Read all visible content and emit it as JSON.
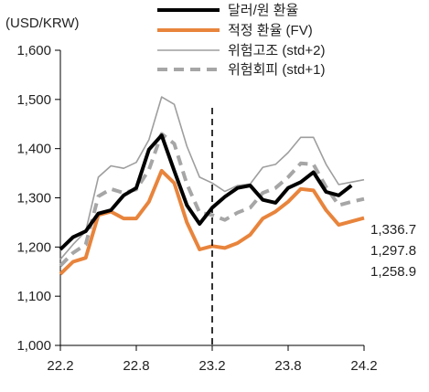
{
  "chart_data": {
    "type": "line",
    "unit_label": "(USD/KRW)",
    "x_ticks": [
      "22.2",
      "22.8",
      "23.2",
      "23.8",
      "24.2"
    ],
    "x_tick_index": [
      0,
      6,
      12,
      18,
      24
    ],
    "ylim": [
      1000,
      1600
    ],
    "y_ticks": [
      1000,
      1100,
      1200,
      1300,
      1400,
      1500,
      1600
    ],
    "y_tick_labels": [
      "1,000",
      "1,100",
      "1,200",
      "1,300",
      "1,400",
      "1,500",
      "1,600"
    ],
    "grid": false,
    "vertical_marker_index": 12,
    "legend_position": "top-center",
    "series": [
      {
        "name": "달러/원 환율",
        "color": "#000000",
        "style": "solid-thick",
        "values": [
          1195,
          1220,
          1232,
          1268,
          1275,
          1305,
          1320,
          1398,
          1427,
          1355,
          1285,
          1247,
          1280,
          1302,
          1320,
          1325,
          1296,
          1290,
          1320,
          1332,
          1352,
          1312,
          1305,
          1325
        ]
      },
      {
        "name": "적정 환율 (FV)",
        "color": "#e8843c",
        "style": "solid-thick",
        "values": [
          1145,
          1170,
          1178,
          1265,
          1272,
          1258,
          1258,
          1292,
          1355,
          1330,
          1250,
          1195,
          1202,
          1198,
          1208,
          1225,
          1258,
          1272,
          1292,
          1318,
          1315,
          1275,
          1245,
          1252,
          1258.9
        ]
      },
      {
        "name": "위험고조 (std+2)",
        "color": "#9e9e9e",
        "style": "solid-thin",
        "values": [
          1175,
          1205,
          1232,
          1342,
          1365,
          1360,
          1372,
          1418,
          1505,
          1490,
          1405,
          1342,
          1330,
          1313,
          1325,
          1328,
          1362,
          1368,
          1392,
          1423,
          1423,
          1368,
          1327,
          1332,
          1336.7
        ]
      },
      {
        "name": "위험회피 (std+1)",
        "color": "#a6a6a6",
        "style": "dashed",
        "values": [
          1162,
          1188,
          1205,
          1303,
          1318,
          1310,
          1317,
          1357,
          1430,
          1410,
          1328,
          1270,
          1265,
          1255,
          1270,
          1280,
          1310,
          1320,
          1342,
          1370,
          1368,
          1322,
          1285,
          1292,
          1297.8
        ]
      }
    ],
    "end_labels": [
      "1,336.7",
      "1,297.8",
      "1,258.9"
    ]
  }
}
